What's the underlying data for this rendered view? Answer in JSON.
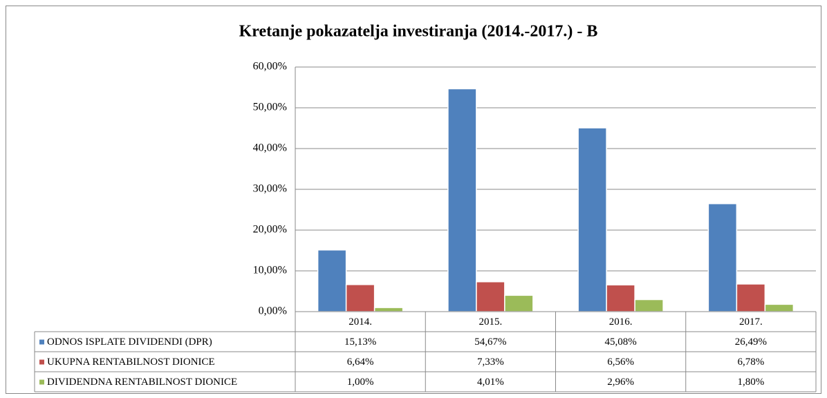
{
  "chart_data": {
    "type": "bar",
    "title": "Kretanje pokazatelja investiranja (2014.-2017.) - B",
    "categories": [
      "2014.",
      "2015.",
      "2016.",
      "2017."
    ],
    "series": [
      {
        "name": "ODNOS ISPLATE DIVIDENDI (DPR)",
        "color": "#4f81bd",
        "values": [
          15.13,
          54.67,
          45.08,
          26.49
        ],
        "value_labels": [
          "15,13%",
          "54,67%",
          "45,08%",
          "26,49%"
        ]
      },
      {
        "name": "UKUPNA RENTABILNOST DIONICE",
        "color": "#c0504d",
        "values": [
          6.64,
          7.33,
          6.56,
          6.78
        ],
        "value_labels": [
          "6,64%",
          "7,33%",
          "6,56%",
          "6,78%"
        ]
      },
      {
        "name": "DIVIDENDNA RENTABILNOST DIONICE",
        "color": "#9bbb59",
        "values": [
          1.0,
          4.01,
          2.96,
          1.8
        ],
        "value_labels": [
          "1,00%",
          "4,01%",
          "2,96%",
          "1,80%"
        ]
      }
    ],
    "ylim": [
      0,
      60
    ],
    "yticks": [
      {
        "value": 0,
        "label": "0,00%"
      },
      {
        "value": 10,
        "label": "10,00%"
      },
      {
        "value": 20,
        "label": "20,00%"
      },
      {
        "value": 30,
        "label": "30,00%"
      },
      {
        "value": 40,
        "label": "40,00%"
      },
      {
        "value": 50,
        "label": "50,00%"
      },
      {
        "value": 60,
        "label": "60,00%"
      }
    ],
    "grid": true
  }
}
